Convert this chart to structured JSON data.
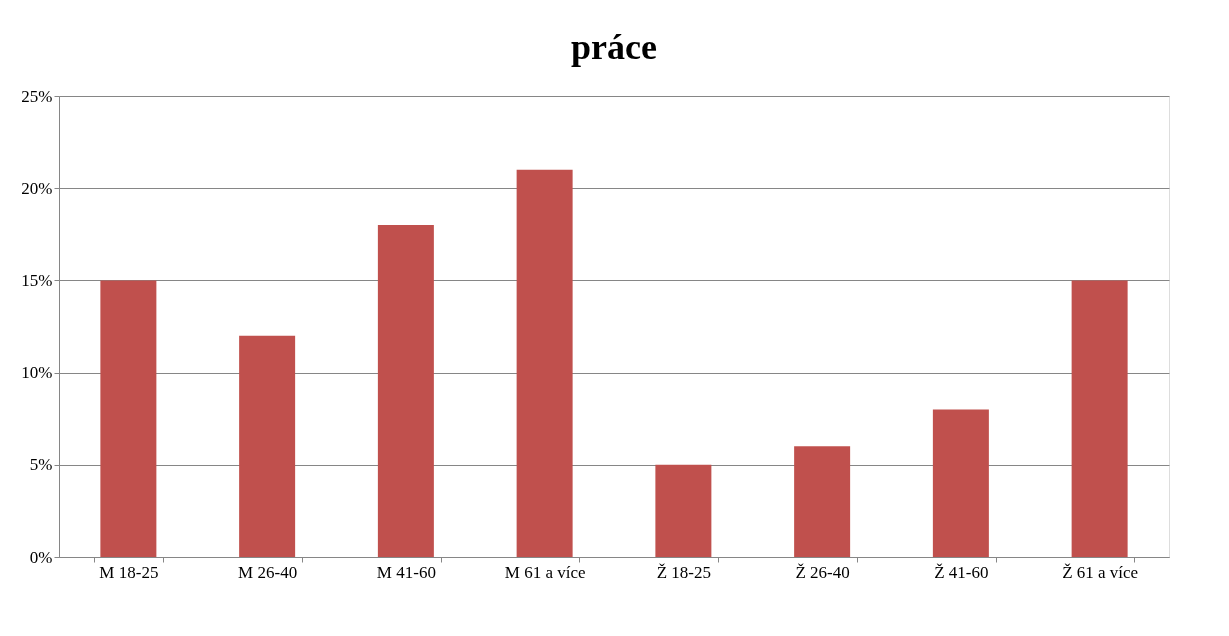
{
  "chart_data": {
    "type": "bar",
    "title": "práce",
    "categories": [
      "M 18-25",
      "M 26-40",
      "M 41-60",
      "M 61 a více",
      "Ž 18-25",
      "Ž 26-40",
      "Ž 41-60",
      "Ž 61 a více"
    ],
    "values": [
      15,
      12,
      18,
      21,
      5,
      6,
      8,
      15
    ],
    "color": "#c0504d",
    "ylim": [
      0,
      25
    ],
    "yticks": [
      {
        "value": 0,
        "label": "0%"
      },
      {
        "value": 5,
        "label": "5%"
      },
      {
        "value": 10,
        "label": "10%"
      },
      {
        "value": 15,
        "label": "15%"
      },
      {
        "value": 20,
        "label": "20%"
      },
      {
        "value": 25,
        "label": "25%"
      }
    ],
    "grid": "y"
  }
}
